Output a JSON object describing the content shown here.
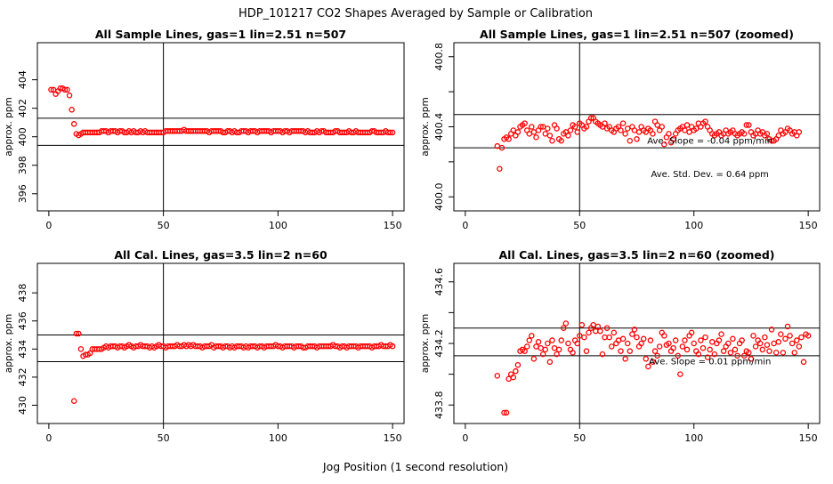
{
  "figure": {
    "title": "HDP_101217  CO2 Shapes Averaged by Sample or Calibration",
    "xlabel": "Jog Position (1 second resolution)"
  },
  "chart_data": [
    {
      "type": "scatter",
      "title": "All Sample Lines, gas=1 lin=2.51 n=507",
      "ylabel": "approx. ppm",
      "xlim": [
        -5,
        155
      ],
      "ylim": [
        394.8,
        406.6
      ],
      "xticks": [
        0,
        50,
        100,
        150
      ],
      "yticks": [
        396,
        398,
        400,
        402,
        404
      ],
      "hlines": [
        399.4,
        401.3
      ],
      "vline": 50,
      "annotations": [],
      "points_x": [
        1,
        2,
        3,
        4,
        5,
        6,
        7,
        8,
        9,
        10,
        11,
        12,
        13,
        14,
        15,
        16,
        17,
        18,
        19,
        20,
        21,
        22,
        23,
        24,
        25,
        26,
        27,
        28,
        29,
        30,
        31,
        32,
        33,
        34,
        35,
        36,
        37,
        38,
        39,
        40,
        41,
        42,
        43,
        44,
        45,
        46,
        47,
        48,
        49,
        50,
        51,
        52,
        53,
        54,
        55,
        56,
        57,
        58,
        59,
        60,
        61,
        62,
        63,
        64,
        65,
        66,
        67,
        68,
        69,
        70,
        71,
        72,
        73,
        74,
        75,
        76,
        77,
        78,
        79,
        80,
        81,
        82,
        83,
        84,
        85,
        86,
        87,
        88,
        89,
        90,
        91,
        92,
        93,
        94,
        95,
        96,
        97,
        98,
        99,
        100,
        101,
        102,
        103,
        104,
        105,
        106,
        107,
        108,
        109,
        110,
        111,
        112,
        113,
        114,
        115,
        116,
        117,
        118,
        119,
        120,
        121,
        122,
        123,
        124,
        125,
        126,
        127,
        128,
        129,
        130,
        131,
        132,
        133,
        134,
        135,
        136,
        137,
        138,
        139,
        140,
        141,
        142,
        143,
        144,
        145,
        146,
        147,
        148,
        149,
        150
      ],
      "points_y": [
        403.3,
        403.3,
        403.0,
        403.2,
        403.4,
        403.4,
        403.3,
        403.3,
        402.9,
        401.9,
        400.9,
        400.2,
        400.1,
        400.2,
        400.3,
        400.3,
        400.3,
        400.3,
        400.3,
        400.3,
        400.3,
        400.3,
        400.4,
        400.4,
        400.4,
        400.3,
        400.4,
        400.4,
        400.4,
        400.3,
        400.4,
        400.4,
        400.3,
        400.3,
        400.4,
        400.3,
        400.4,
        400.3,
        400.3,
        400.4,
        400.3,
        400.4,
        400.3,
        400.3,
        400.3,
        400.3,
        400.3,
        400.3,
        400.3,
        400.3,
        400.4,
        400.4,
        400.4,
        400.4,
        400.4,
        400.4,
        400.4,
        400.4,
        400.5,
        400.4,
        400.4,
        400.4,
        400.4,
        400.4,
        400.4,
        400.4,
        400.4,
        400.4,
        400.4,
        400.3,
        400.4,
        400.4,
        400.4,
        400.4,
        400.4,
        400.3,
        400.3,
        400.4,
        400.4,
        400.3,
        400.4,
        400.3,
        400.3,
        400.4,
        400.4,
        400.4,
        400.3,
        400.4,
        400.4,
        400.4,
        400.3,
        400.4,
        400.4,
        400.4,
        400.4,
        400.4,
        400.3,
        400.4,
        400.4,
        400.4,
        400.4,
        400.3,
        400.4,
        400.4,
        400.3,
        400.4,
        400.4,
        400.4,
        400.4,
        400.4,
        400.4,
        400.3,
        400.4,
        400.3,
        400.3,
        400.3,
        400.4,
        400.3,
        400.4,
        400.4,
        400.3,
        400.3,
        400.3,
        400.3,
        400.4,
        400.4,
        400.3,
        400.3,
        400.3,
        400.3,
        400.4,
        400.3,
        400.3,
        400.4,
        400.3,
        400.3,
        400.3,
        400.3,
        400.3,
        400.3,
        400.4,
        400.4,
        400.3,
        400.3,
        400.3,
        400.3,
        400.4,
        400.3,
        400.3,
        400.3
      ]
    },
    {
      "type": "scatter",
      "title": "All Sample Lines, gas=1 lin=2.51 n=507 (zoomed)",
      "ylabel": "approx. ppm",
      "xlim": [
        -5,
        155
      ],
      "ylim": [
        399.92,
        400.88
      ],
      "xticks": [
        0,
        50,
        100,
        150
      ],
      "yticks": [
        400.0,
        400.4,
        400.8
      ],
      "yticks_minor": [
        400.2,
        400.6
      ],
      "hlines": [
        400.28,
        400.47
      ],
      "vline": 50,
      "annotations": [
        "Ave. Slope =  -0.04  ppm/min",
        "Ave. Std. Dev. =  0.64  ppm"
      ],
      "points_x": [
        14,
        15,
        16,
        17,
        18,
        19,
        20,
        21,
        22,
        23,
        24,
        25,
        26,
        27,
        28,
        29,
        30,
        31,
        32,
        33,
        34,
        35,
        36,
        37,
        38,
        39,
        40,
        41,
        42,
        43,
        44,
        45,
        46,
        47,
        48,
        49,
        50,
        51,
        52,
        53,
        54,
        55,
        56,
        57,
        58,
        59,
        60,
        61,
        62,
        63,
        64,
        65,
        66,
        67,
        68,
        69,
        70,
        71,
        72,
        73,
        74,
        75,
        76,
        77,
        78,
        79,
        80,
        81,
        82,
        83,
        84,
        85,
        86,
        87,
        88,
        89,
        90,
        91,
        92,
        93,
        94,
        95,
        96,
        97,
        98,
        99,
        100,
        101,
        102,
        103,
        104,
        105,
        106,
        107,
        108,
        109,
        110,
        111,
        112,
        113,
        114,
        115,
        116,
        117,
        118,
        119,
        120,
        121,
        122,
        123,
        124,
        125,
        126,
        127,
        128,
        129,
        130,
        131,
        132,
        133,
        134,
        135,
        136,
        137,
        138,
        139,
        140,
        141,
        142,
        143,
        144,
        145,
        146,
        147,
        148,
        149,
        150
      ],
      "points_y": [
        400.29,
        400.16,
        400.28,
        400.33,
        400.34,
        400.33,
        400.36,
        400.38,
        400.35,
        400.37,
        400.4,
        400.41,
        400.42,
        400.38,
        400.36,
        400.4,
        400.37,
        400.34,
        400.38,
        400.4,
        400.4,
        400.36,
        400.39,
        400.35,
        400.32,
        400.41,
        400.39,
        400.33,
        400.32,
        400.36,
        400.37,
        400.35,
        400.38,
        400.41,
        400.4,
        400.37,
        400.42,
        400.41,
        400.39,
        400.4,
        400.43,
        400.45,
        400.45,
        400.43,
        400.42,
        400.41,
        400.4,
        400.42,
        400.39,
        400.4,
        400.38,
        400.37,
        400.39,
        400.4,
        400.38,
        400.42,
        400.36,
        400.39,
        400.32,
        400.4,
        400.38,
        400.33,
        400.37,
        400.4,
        400.38,
        400.37,
        400.39,
        400.38,
        400.36,
        400.43,
        400.41,
        400.38,
        400.4,
        400.3,
        400.34,
        400.36,
        400.31,
        400.33,
        400.36,
        400.38,
        400.39,
        400.4,
        400.38,
        400.41,
        400.37,
        400.4,
        400.38,
        400.39,
        400.42,
        400.4,
        400.42,
        400.43,
        400.4,
        400.38,
        400.36,
        400.35,
        400.36,
        400.37,
        400.35,
        400.36,
        400.38,
        400.36,
        400.37,
        400.38,
        400.36,
        400.35,
        400.36,
        400.37,
        400.36,
        400.41,
        400.41,
        400.37,
        400.35,
        400.36,
        400.38,
        400.36,
        400.37,
        400.35,
        400.36,
        400.33,
        400.32,
        400.32,
        400.33,
        400.35,
        400.38,
        400.36,
        400.37,
        400.39,
        400.38,
        400.36,
        400.37,
        400.35,
        400.37
      ]
    },
    {
      "type": "scatter",
      "title": "All Cal. Lines, gas=3.5 lin=2 n=60",
      "ylabel": "approx. ppm",
      "xlim": [
        -5,
        155
      ],
      "ylim": [
        428.7,
        440.1
      ],
      "xticks": [
        0,
        50,
        100,
        150
      ],
      "yticks": [
        430,
        432,
        434,
        436,
        438
      ],
      "hlines": [
        433.1,
        435.0
      ],
      "vline": 50,
      "annotations": [],
      "points_x": [
        11,
        12,
        13,
        14,
        15,
        16,
        17,
        18,
        19,
        20,
        21,
        22,
        23,
        24,
        25,
        26,
        27,
        28,
        29,
        30,
        31,
        32,
        33,
        34,
        35,
        36,
        37,
        38,
        39,
        40,
        41,
        42,
        43,
        44,
        45,
        46,
        47,
        48,
        49,
        50,
        51,
        52,
        53,
        54,
        55,
        56,
        57,
        58,
        59,
        60,
        61,
        62,
        63,
        64,
        65,
        66,
        67,
        68,
        69,
        70,
        71,
        72,
        73,
        74,
        75,
        76,
        77,
        78,
        79,
        80,
        81,
        82,
        83,
        84,
        85,
        86,
        87,
        88,
        89,
        90,
        91,
        92,
        93,
        94,
        95,
        96,
        97,
        98,
        99,
        100,
        101,
        102,
        103,
        104,
        105,
        106,
        107,
        108,
        109,
        110,
        111,
        112,
        113,
        114,
        115,
        116,
        117,
        118,
        119,
        120,
        121,
        122,
        123,
        124,
        125,
        126,
        127,
        128,
        129,
        130,
        131,
        132,
        133,
        134,
        135,
        136,
        137,
        138,
        139,
        140,
        141,
        142,
        143,
        144,
        145,
        146,
        147,
        148,
        149,
        150
      ],
      "points_y": [
        430.3,
        435.1,
        435.1,
        434.0,
        433.5,
        433.6,
        433.6,
        433.7,
        434.0,
        434.0,
        434.0,
        434.0,
        434.0,
        434.1,
        434.2,
        434.1,
        434.2,
        434.2,
        434.2,
        434.1,
        434.2,
        434.2,
        434.1,
        434.2,
        434.3,
        434.2,
        434.1,
        434.2,
        434.2,
        434.3,
        434.2,
        434.2,
        434.2,
        434.1,
        434.2,
        434.1,
        434.2,
        434.3,
        434.2,
        434.2,
        434.1,
        434.2,
        434.2,
        434.2,
        434.2,
        434.3,
        434.2,
        434.2,
        434.3,
        434.2,
        434.3,
        434.2,
        434.3,
        434.2,
        434.2,
        434.2,
        434.1,
        434.2,
        434.2,
        434.2,
        434.3,
        434.1,
        434.2,
        434.2,
        434.2,
        434.1,
        434.2,
        434.2,
        434.1,
        434.2,
        434.1,
        434.2,
        434.2,
        434.2,
        434.1,
        434.2,
        434.1,
        434.2,
        434.2,
        434.2,
        434.1,
        434.2,
        434.2,
        434.1,
        434.2,
        434.2,
        434.2,
        434.2,
        434.3,
        434.2,
        434.2,
        434.1,
        434.2,
        434.2,
        434.2,
        434.2,
        434.1,
        434.2,
        434.2,
        434.2,
        434.1,
        434.1,
        434.2,
        434.2,
        434.2,
        434.2,
        434.1,
        434.2,
        434.2,
        434.2,
        434.2,
        434.2,
        434.2,
        434.3,
        434.2,
        434.2,
        434.1,
        434.2,
        434.2,
        434.1,
        434.2,
        434.2,
        434.2,
        434.2,
        434.1,
        434.2,
        434.2,
        434.2,
        434.2,
        434.2,
        434.1,
        434.2,
        434.2,
        434.2,
        434.3,
        434.2,
        434.2,
        434.2,
        434.3,
        434.2
      ]
    },
    {
      "type": "scatter",
      "title": "All Cal. Lines, gas=3.5 lin=2 n=60 (zoomed)",
      "ylabel": "approx. ppm",
      "xlim": [
        -5,
        155
      ],
      "ylim": [
        433.68,
        434.72
      ],
      "xticks": [
        0,
        50,
        100,
        150
      ],
      "yticks": [
        433.8,
        434.2,
        434.6
      ],
      "yticks_minor": [
        434.0,
        434.4
      ],
      "hlines": [
        434.12,
        434.3
      ],
      "vline": 50,
      "annotations": [
        "Ave. Slope =  0.01  ppm/min"
      ],
      "points_x": [
        14,
        17,
        18,
        19,
        20,
        21,
        22,
        23,
        24,
        25,
        26,
        27,
        28,
        29,
        30,
        31,
        32,
        33,
        34,
        35,
        36,
        37,
        38,
        39,
        40,
        41,
        42,
        43,
        44,
        45,
        46,
        47,
        48,
        49,
        50,
        51,
        52,
        53,
        54,
        55,
        56,
        57,
        58,
        59,
        60,
        61,
        62,
        63,
        64,
        65,
        66,
        67,
        68,
        69,
        70,
        71,
        72,
        73,
        74,
        75,
        76,
        77,
        78,
        79,
        80,
        81,
        82,
        83,
        84,
        85,
        86,
        87,
        88,
        89,
        90,
        91,
        92,
        93,
        94,
        95,
        96,
        97,
        98,
        99,
        100,
        101,
        102,
        103,
        104,
        105,
        106,
        107,
        108,
        109,
        110,
        111,
        112,
        113,
        114,
        115,
        116,
        117,
        118,
        119,
        120,
        121,
        122,
        123,
        124,
        125,
        126,
        127,
        128,
        129,
        130,
        131,
        132,
        133,
        134,
        135,
        136,
        137,
        138,
        139,
        140,
        141,
        142,
        143,
        144,
        145,
        146,
        147,
        148,
        149,
        150
      ],
      "points_y": [
        433.99,
        433.75,
        433.75,
        433.97,
        434.0,
        433.98,
        434.02,
        434.06,
        434.15,
        434.16,
        434.15,
        434.18,
        434.22,
        434.25,
        434.1,
        434.18,
        434.21,
        434.17,
        434.13,
        434.16,
        434.2,
        434.08,
        434.22,
        434.17,
        434.13,
        434.16,
        434.22,
        434.3,
        434.33,
        434.2,
        434.16,
        434.14,
        434.22,
        434.2,
        434.25,
        434.32,
        434.24,
        434.15,
        434.27,
        434.3,
        434.32,
        434.28,
        434.31,
        434.28,
        434.13,
        434.24,
        434.3,
        434.24,
        434.18,
        434.27,
        434.2,
        434.22,
        434.15,
        434.23,
        434.1,
        434.2,
        434.15,
        434.26,
        434.29,
        434.24,
        434.18,
        434.2,
        434.23,
        434.1,
        434.05,
        434.22,
        434.08,
        434.15,
        434.12,
        434.18,
        434.27,
        434.25,
        434.19,
        434.2,
        434.15,
        434.17,
        434.22,
        434.12,
        434.0,
        434.18,
        434.22,
        434.16,
        434.25,
        434.27,
        434.2,
        434.15,
        434.13,
        434.22,
        434.17,
        434.24,
        434.11,
        434.16,
        434.21,
        434.13,
        434.2,
        434.22,
        434.26,
        434.15,
        434.18,
        434.2,
        434.14,
        434.23,
        434.16,
        434.12,
        434.2,
        434.22,
        434.12,
        434.15,
        434.14,
        434.1,
        434.25,
        434.18,
        434.22,
        434.2,
        434.16,
        434.24,
        434.19,
        434.15,
        434.29,
        434.2,
        434.14,
        434.21,
        434.26,
        434.14,
        434.23,
        434.31,
        434.25,
        434.2,
        434.14,
        434.22,
        434.18,
        434.24,
        434.08,
        434.26,
        434.25
      ]
    }
  ],
  "colors": {
    "points": "#ff0000",
    "axes": "#000000",
    "background": "#ffffff"
  }
}
